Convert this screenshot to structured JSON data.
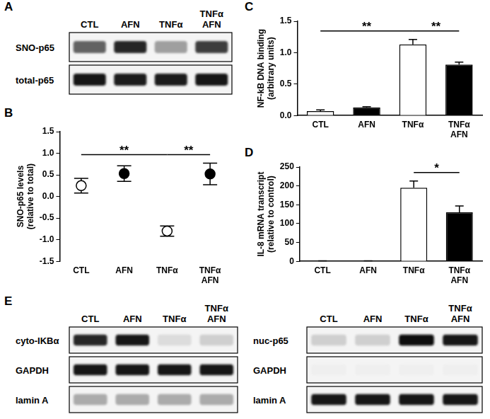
{
  "chart_data": [
    {
      "panel_label": "B",
      "type": "scatter",
      "categories": [
        "CTL",
        "AFN",
        "TNFα",
        "TNFα AFN"
      ],
      "values": [
        0.25,
        0.53,
        -0.8,
        0.52
      ],
      "errors": [
        0.17,
        0.18,
        0.12,
        0.25
      ],
      "colors": [
        "#ffffff",
        "#000000",
        "#ffffff",
        "#000000"
      ],
      "marker": "circle",
      "ylabel": [
        "SNO-p65 levels",
        "(relative to total)"
      ],
      "ylim": [
        -1.5,
        1.5
      ],
      "yticks": [
        -1.5,
        {
          "value": -1,
          "label": "-1.0"
        },
        -0.5,
        {
          "value": 0,
          "label": "0.0"
        },
        0.5,
        {
          "value": 1,
          "label": "1.0"
        },
        1.5
      ],
      "grid": false,
      "annotations": [
        {
          "text": "**",
          "from": "CTL",
          "to": "TNFα"
        },
        {
          "text": "**",
          "from": "TNFα",
          "to": "TNFα AFN"
        }
      ]
    },
    {
      "panel_label": "C",
      "type": "bar",
      "categories": [
        "CTL",
        "AFN",
        "TNFα",
        "TNFα AFN"
      ],
      "values": [
        0.07,
        0.13,
        1.13,
        0.81
      ],
      "errors": [
        0.02,
        0.01,
        0.08,
        0.04
      ],
      "colors": [
        "#ffffff",
        "#000000",
        "#ffffff",
        "#000000"
      ],
      "ylabel": [
        "NF-kB DNA binding",
        "(arbitrary units)"
      ],
      "ylim": [
        0,
        1.5
      ],
      "yticks": [
        {
          "value": 0,
          "label": "0.0"
        },
        0.5,
        {
          "value": 1,
          "label": "1.0"
        },
        1.5
      ],
      "grid": false,
      "annotations": [
        {
          "text": "**",
          "from": "CTL",
          "to": "TNFα"
        },
        {
          "text": "**",
          "from": "TNFα",
          "to": "TNFα AFN"
        }
      ]
    },
    {
      "panel_label": "D",
      "type": "bar",
      "categories": [
        "CTL",
        "AFN",
        "TNFα",
        "TNFα AFN"
      ],
      "values": [
        1,
        1,
        195,
        130
      ],
      "errors": [
        0.2,
        0.2,
        18,
        17
      ],
      "colors": [
        "#ffffff",
        "#000000",
        "#ffffff",
        "#000000"
      ],
      "ylabel": [
        "IL-8 mRNA transcript",
        "(relative to control)"
      ],
      "ylim": [
        0,
        250
      ],
      "yticks": [
        0,
        50,
        100,
        150,
        200,
        250
      ],
      "grid": false,
      "annotations": [
        {
          "text": "*",
          "from": "TNFα",
          "to": "TNFα AFN"
        }
      ]
    }
  ],
  "blots": [
    {
      "panel_label": "A",
      "lanes": [
        "CTL",
        "AFN",
        "TNFα",
        "TNFα AFN"
      ],
      "rows": [
        {
          "label": "SNO-p65",
          "band_intensity": [
            0.6,
            0.85,
            0.35,
            0.75
          ]
        },
        {
          "label": "total-p65",
          "band_intensity": [
            0.9,
            0.88,
            0.88,
            0.9
          ]
        }
      ]
    },
    {
      "panel_label": "E",
      "lanes": [
        "CTL",
        "AFN",
        "TNFα",
        "TNFα AFN"
      ],
      "rows": [
        {
          "label": "cyto-IKBα",
          "band_intensity": [
            0.85,
            0.9,
            0.1,
            0.15
          ]
        },
        {
          "label": "GAPDH",
          "band_intensity": [
            0.9,
            0.9,
            0.9,
            0.9
          ]
        },
        {
          "label": "lamin A",
          "band_intensity": [
            0.3,
            0.3,
            0.3,
            0.3
          ]
        }
      ]
    },
    {
      "lanes": [
        "CTL",
        "AFN",
        "TNFα",
        "TNFα AFN"
      ],
      "rows": [
        {
          "label": "nuc-p65",
          "band_intensity": [
            0.15,
            0.15,
            0.95,
            0.9
          ]
        },
        {
          "label": "GAPDH",
          "band_intensity": [
            0.02,
            0.02,
            0.02,
            0.02
          ]
        },
        {
          "label": "lamin A",
          "band_intensity": [
            0.9,
            0.9,
            0.9,
            0.9
          ]
        }
      ]
    }
  ]
}
